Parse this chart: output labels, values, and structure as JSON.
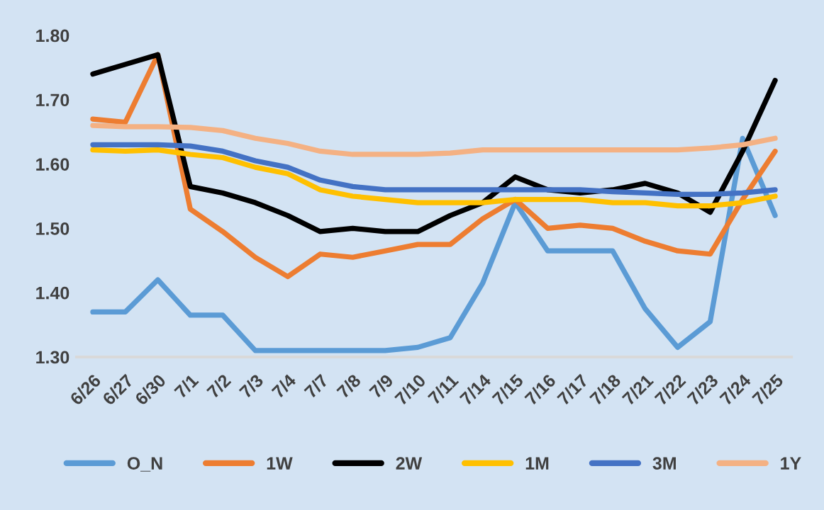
{
  "chart_data": {
    "type": "line",
    "categories": [
      "6/26",
      "6/27",
      "6/30",
      "7/1",
      "7/2",
      "7/3",
      "7/4",
      "7/7",
      "7/8",
      "7/9",
      "7/10",
      "7/11",
      "7/14",
      "7/15",
      "7/16",
      "7/17",
      "7/18",
      "7/21",
      "7/22",
      "7/23",
      "7/24",
      "7/25"
    ],
    "series": [
      {
        "name": "O_N",
        "color": "#5b9bd5",
        "values": [
          1.37,
          1.37,
          1.42,
          1.365,
          1.365,
          1.31,
          1.31,
          1.31,
          1.31,
          1.31,
          1.315,
          1.33,
          1.415,
          1.54,
          1.465,
          1.465,
          1.465,
          1.375,
          1.315,
          1.355,
          1.64,
          1.52
        ]
      },
      {
        "name": "1W",
        "color": "#ed7d31",
        "values": [
          1.67,
          1.665,
          1.77,
          1.53,
          1.495,
          1.455,
          1.425,
          1.46,
          1.455,
          1.465,
          1.475,
          1.475,
          1.515,
          1.545,
          1.5,
          1.505,
          1.5,
          1.48,
          1.465,
          1.46,
          1.545,
          1.62
        ]
      },
      {
        "name": "2W",
        "color": "#000000",
        "values": [
          1.74,
          1.755,
          1.77,
          1.565,
          1.555,
          1.54,
          1.52,
          1.495,
          1.5,
          1.495,
          1.495,
          1.52,
          1.54,
          1.58,
          1.56,
          1.555,
          1.56,
          1.57,
          1.555,
          1.525,
          1.62,
          1.73
        ]
      },
      {
        "name": "1M",
        "color": "#ffc000",
        "values": [
          1.622,
          1.62,
          1.622,
          1.615,
          1.61,
          1.595,
          1.585,
          1.56,
          1.55,
          1.545,
          1.54,
          1.54,
          1.54,
          1.545,
          1.545,
          1.545,
          1.54,
          1.54,
          1.535,
          1.535,
          1.54,
          1.55
        ]
      },
      {
        "name": "3M",
        "color": "#4472c4",
        "values": [
          1.63,
          1.63,
          1.63,
          1.628,
          1.62,
          1.605,
          1.595,
          1.575,
          1.565,
          1.56,
          1.56,
          1.56,
          1.56,
          1.56,
          1.56,
          1.56,
          1.557,
          1.555,
          1.553,
          1.553,
          1.555,
          1.56
        ]
      },
      {
        "name": "1Y",
        "color": "#f4b183",
        "values": [
          1.66,
          1.658,
          1.658,
          1.657,
          1.652,
          1.64,
          1.632,
          1.62,
          1.615,
          1.615,
          1.615,
          1.617,
          1.622,
          1.622,
          1.622,
          1.622,
          1.622,
          1.622,
          1.622,
          1.625,
          1.63,
          1.64
        ]
      }
    ],
    "ylim": [
      1.3,
      1.8
    ],
    "yticks": [
      {
        "value": 1.3,
        "label": "1.30"
      },
      {
        "value": 1.4,
        "label": "1.40"
      },
      {
        "value": 1.5,
        "label": "1.50"
      },
      {
        "value": 1.6,
        "label": "1.60"
      },
      {
        "value": 1.7,
        "label": "1.70"
      },
      {
        "value": 1.8,
        "label": "1.80"
      }
    ],
    "grid": false,
    "legend": "bottom",
    "marker": "none",
    "line_style": "solid"
  }
}
